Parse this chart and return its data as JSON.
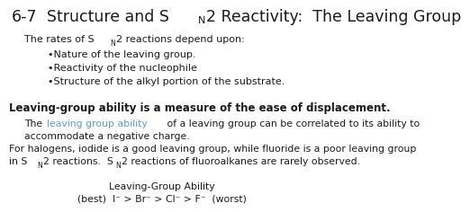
{
  "bg_color": "#ffffff",
  "text_color": "#1a1a1a",
  "link_color": "#5b9bd5",
  "title_prefix": "6-7",
  "title_rest": "2 Reactivity:  The Leaving Group",
  "title_SN": "Structure and S",
  "title_N": "N",
  "bold_line": "Leaving-group ability is a measure of the ease of displacement.",
  "label": "Leaving-Group Ability",
  "reactivity_line": "(best)  I⁻ > Br⁻ > Cl⁻ > F⁻  (worst)"
}
